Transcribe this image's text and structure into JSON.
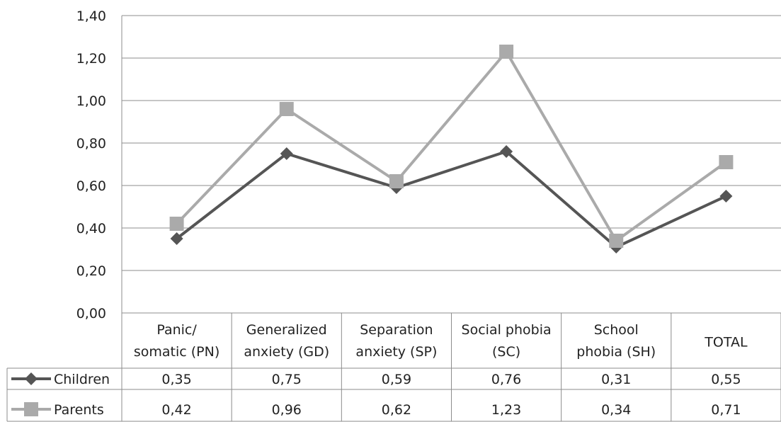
{
  "chart_data": {
    "type": "line",
    "categories": [
      [
        "Panic/",
        "somatic (PN)"
      ],
      [
        "Generalized",
        "anxiety (GD)"
      ],
      [
        "Separation",
        "anxiety (SP)"
      ],
      [
        "Social phobia",
        "(SC)"
      ],
      [
        "School",
        "phobia (SH)"
      ],
      [
        "TOTAL"
      ]
    ],
    "series": [
      {
        "name": "Children",
        "values": [
          0.35,
          0.75,
          0.59,
          0.76,
          0.31,
          0.55
        ],
        "labels": [
          "0,35",
          "0,75",
          "0,59",
          "0,76",
          "0,31",
          "0,55"
        ],
        "color": "#555555",
        "marker": "diamond"
      },
      {
        "name": "Parents",
        "values": [
          0.42,
          0.96,
          0.62,
          1.23,
          0.34,
          0.71
        ],
        "labels": [
          "0,42",
          "0,96",
          "0,62",
          "1,23",
          "0,34",
          "0,71"
        ],
        "color": "#aaaaaa",
        "marker": "square"
      }
    ],
    "ylim": [
      0,
      1.4
    ],
    "yticks": [
      "0,00",
      "0,20",
      "0,40",
      "0,60",
      "0,80",
      "1,00",
      "1,20",
      "1,40"
    ],
    "grid": true,
    "data_table": true
  }
}
